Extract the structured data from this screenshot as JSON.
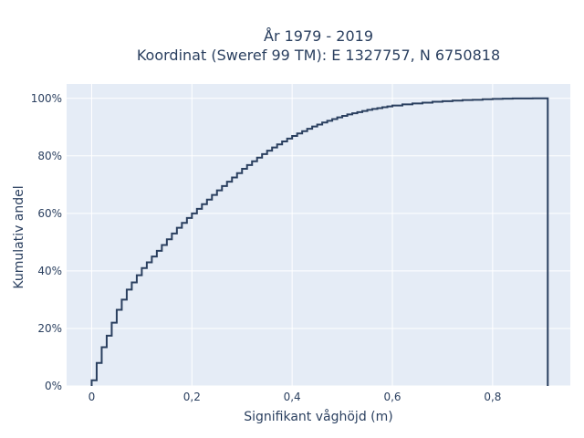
{
  "chart_data": {
    "type": "line",
    "line_shape": "step",
    "title_lines": [
      "År 1979 - 2019",
      "Koordinat (Sweref 99 TM): E 1327757, N 6750818"
    ],
    "xlabel": "Signifikant våghöjd (m)",
    "ylabel": "Kumulativ andel",
    "xlim": [
      -0.05,
      0.955
    ],
    "ylim": [
      0,
      1.05
    ],
    "x_ticks": [
      0,
      0.2,
      0.4,
      0.6,
      0.8
    ],
    "x_tick_labels": [
      "0",
      "0,2",
      "0,4",
      "0,6",
      "0,8"
    ],
    "y_ticks": [
      0,
      0.2,
      0.4,
      0.6,
      0.8,
      1.0
    ],
    "y_tick_labels": [
      "0%",
      "20%",
      "40%",
      "60%",
      "80%",
      "100%"
    ],
    "grid": true,
    "colors": {
      "line": "#2a3f5f",
      "plot_bg": "#e5ecf6",
      "grid": "#ffffff"
    },
    "series": [
      {
        "x": [
          0,
          0.01,
          0.02,
          0.03,
          0.04,
          0.05,
          0.06,
          0.07,
          0.08,
          0.09,
          0.1,
          0.11,
          0.12,
          0.13,
          0.14,
          0.15,
          0.16,
          0.17,
          0.18,
          0.19,
          0.2,
          0.21,
          0.22,
          0.23,
          0.24,
          0.25,
          0.26,
          0.27,
          0.28,
          0.29,
          0.3,
          0.31,
          0.32,
          0.33,
          0.34,
          0.35,
          0.36,
          0.37,
          0.38,
          0.39,
          0.4,
          0.41,
          0.42,
          0.43,
          0.44,
          0.45,
          0.46,
          0.47,
          0.48,
          0.49,
          0.5,
          0.51,
          0.52,
          0.53,
          0.54,
          0.55,
          0.56,
          0.57,
          0.58,
          0.59,
          0.6,
          0.62,
          0.64,
          0.66,
          0.68,
          0.7,
          0.72,
          0.74,
          0.76,
          0.78,
          0.8,
          0.82,
          0.84,
          0.86,
          0.88,
          0.91
        ],
        "y": [
          0.02,
          0.08,
          0.135,
          0.175,
          0.22,
          0.265,
          0.3,
          0.335,
          0.36,
          0.385,
          0.41,
          0.43,
          0.45,
          0.47,
          0.49,
          0.51,
          0.53,
          0.55,
          0.567,
          0.584,
          0.6,
          0.616,
          0.632,
          0.648,
          0.664,
          0.68,
          0.695,
          0.71,
          0.725,
          0.74,
          0.755,
          0.768,
          0.781,
          0.794,
          0.806,
          0.818,
          0.829,
          0.84,
          0.85,
          0.86,
          0.869,
          0.878,
          0.886,
          0.894,
          0.902,
          0.909,
          0.916,
          0.922,
          0.928,
          0.934,
          0.939,
          0.944,
          0.948,
          0.952,
          0.956,
          0.96,
          0.963,
          0.966,
          0.969,
          0.972,
          0.975,
          0.979,
          0.982,
          0.985,
          0.988,
          0.99,
          0.992,
          0.994,
          0.995,
          0.997,
          0.998,
          0.999,
          0.9995,
          0.9998,
          1.0,
          1.0
        ]
      }
    ]
  }
}
